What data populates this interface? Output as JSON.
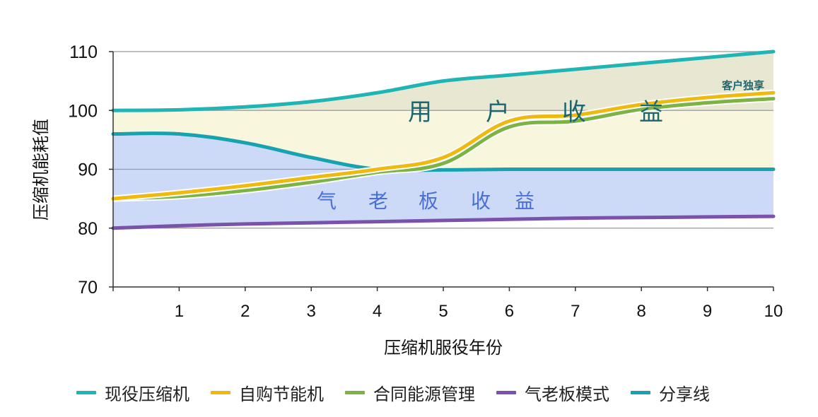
{
  "chart_data": {
    "type": "line",
    "title": "",
    "xlabel": "压缩机服役年份",
    "ylabel": "压缩机能耗值",
    "xlim": [
      0,
      10
    ],
    "ylim": [
      70,
      110
    ],
    "x_ticks": [
      1,
      2,
      3,
      4,
      5,
      6,
      7,
      8,
      9,
      10
    ],
    "y_ticks": [
      70,
      80,
      90,
      100,
      110
    ],
    "grid": {
      "horizontal": true,
      "vertical": false
    },
    "legend_position": "bottom",
    "x": [
      0,
      1,
      2,
      3,
      4,
      5,
      6,
      7,
      8,
      9,
      10
    ],
    "series": [
      {
        "name": "现役压缩机",
        "color": "#1fb5b5",
        "values": [
          100,
          100.1,
          100.6,
          101.5,
          103,
          105,
          106,
          107,
          108,
          109,
          110
        ]
      },
      {
        "name": "自购节能机",
        "color": "#f0b90f",
        "values": [
          85,
          86,
          87.2,
          88.6,
          90,
          92,
          98.2,
          99.2,
          101,
          102.2,
          103
        ]
      },
      {
        "name": "合同能源管理",
        "color": "#7cb342",
        "values": [
          85,
          85.4,
          86.4,
          87.8,
          89.5,
          91,
          97.2,
          98.2,
          100.2,
          101.3,
          102
        ]
      },
      {
        "name": "气老板模式",
        "color": "#7b52ab",
        "values": [
          80,
          80.4,
          80.7,
          80.9,
          81.1,
          81.3,
          81.5,
          81.7,
          81.8,
          81.9,
          82
        ]
      },
      {
        "name": "分享线",
        "color": "#17a2b0",
        "values": [
          96,
          96,
          94.5,
          92,
          90,
          89.9,
          90,
          90,
          90,
          90,
          90
        ]
      }
    ],
    "regions": [
      {
        "label": "客户独享",
        "between": [
          "现役压缩机",
          "y=100"
        ],
        "color": "#e8e8d2"
      },
      {
        "label": "用　户　收　益",
        "between": [
          "y=100",
          "分享线"
        ],
        "color": "#f8f6dc"
      },
      {
        "label": "气　老　板　收　益",
        "between": [
          "分享线",
          "气老板模式"
        ],
        "color": "#ccdaf7"
      }
    ],
    "annotations": [
      {
        "text": "用　户　收　益",
        "x": 5.8,
        "y": 99.5
      },
      {
        "text": "气　老　板　收　益",
        "x": 3.8,
        "y": 84.5
      },
      {
        "text": "客户独享",
        "x": 9.6,
        "y": 104.3
      }
    ]
  },
  "labels": {
    "xlabel": "压缩机服役年份",
    "ylabel": "压缩机能耗值",
    "user_gain": [
      "用",
      "户",
      "收",
      "益"
    ],
    "qlb_gain": [
      "气",
      "老",
      "板",
      "收",
      "益"
    ],
    "exclusive": "客户独享"
  },
  "legend": [
    {
      "label": "现役压缩机",
      "color": "#1fb5b5"
    },
    {
      "label": "自购节能机",
      "color": "#f0b90f"
    },
    {
      "label": "合同能源管理",
      "color": "#7cb342"
    },
    {
      "label": "气老板模式",
      "color": "#7b52ab"
    },
    {
      "label": "分享线",
      "color": "#17a2b0"
    }
  ]
}
